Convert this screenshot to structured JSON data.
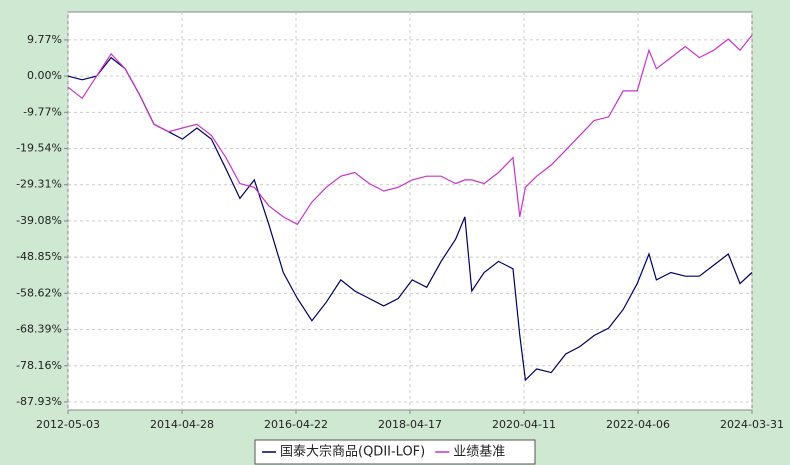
{
  "chart_data": {
    "type": "line",
    "x": [
      "2012-05-03",
      "2012-08-01",
      "2012-11-01",
      "2013-02-01",
      "2013-05-01",
      "2013-08-01",
      "2013-11-01",
      "2014-02-01",
      "2014-05-01",
      "2014-08-01",
      "2014-11-01",
      "2015-02-01",
      "2015-05-01",
      "2015-08-01",
      "2015-11-01",
      "2016-02-01",
      "2016-05-01",
      "2016-08-01",
      "2016-11-01",
      "2017-02-01",
      "2017-05-01",
      "2017-08-01",
      "2017-11-01",
      "2018-02-01",
      "2018-05-01",
      "2018-08-01",
      "2018-11-01",
      "2019-02-01",
      "2019-04-01",
      "2019-05-15",
      "2019-08-01",
      "2019-11-01",
      "2020-02-01",
      "2020-03-15",
      "2020-04-20",
      "2020-07-01",
      "2020-10-01",
      "2021-01-01",
      "2021-04-01",
      "2021-07-01",
      "2021-10-01",
      "2022-01-01",
      "2022-04-01",
      "2022-06-15",
      "2022-08-01",
      "2022-11-01",
      "2023-02-01",
      "2023-05-01",
      "2023-08-01",
      "2023-11-01",
      "2024-01-15",
      "2024-03-31"
    ],
    "series": [
      {
        "name": "国泰大宗商品(QDII-LOF)",
        "color": "#000066",
        "values": [
          0,
          -1,
          0,
          5,
          2,
          -5,
          -13,
          -15,
          -17,
          -14,
          -17,
          -25,
          -33,
          -28,
          -40,
          -53,
          -60,
          -66,
          -61,
          -55,
          -58,
          -60,
          -62,
          -60,
          -55,
          -57,
          -50,
          -44,
          -38,
          -58,
          -53,
          -50,
          -52,
          -70,
          -82,
          -79,
          -80,
          -75,
          -73,
          -70,
          -68,
          -63,
          -56,
          -48,
          -55,
          -53,
          -54,
          -54,
          -51,
          -48,
          -56,
          -53
        ]
      },
      {
        "name": "业绩基准",
        "color": "#cc33cc",
        "values": [
          -3,
          -6,
          0,
          6,
          2,
          -5,
          -13,
          -15,
          -14,
          -13,
          -16,
          -22,
          -29,
          -30,
          -35,
          -38,
          -40,
          -34,
          -30,
          -27,
          -26,
          -29,
          -31,
          -30,
          -28,
          -27,
          -27,
          -29,
          -28,
          -28,
          -29,
          -26,
          -22,
          -38,
          -30,
          -27,
          -24,
          -20,
          -16,
          -12,
          -11,
          -4,
          -4,
          7,
          2,
          5,
          8,
          5,
          7,
          10,
          7,
          11
        ]
      }
    ],
    "xlim": [
      "2012-05-03",
      "2024-03-31"
    ],
    "xticks": [
      "2012-05-03",
      "2014-04-28",
      "2016-04-22",
      "2018-04-17",
      "2020-04-11",
      "2022-04-06",
      "2024-03-31"
    ],
    "ylim": [
      -90.1,
      17.3
    ],
    "yticks": [
      {
        "value": 9.77,
        "label": "9.77%"
      },
      {
        "value": 0,
        "label": "0.00%"
      },
      {
        "value": -9.77,
        "label": "-9.77%"
      },
      {
        "value": -19.54,
        "label": "-19.54%"
      },
      {
        "value": -29.31,
        "label": "-29.31%"
      },
      {
        "value": -39.08,
        "label": "-39.08%"
      },
      {
        "value": -48.85,
        "label": "-48.85%"
      },
      {
        "value": -58.62,
        "label": "-58.62%"
      },
      {
        "value": -68.39,
        "label": "-68.39%"
      },
      {
        "value": -78.16,
        "label": "-78.16%"
      },
      {
        "value": -87.93,
        "label": "-87.93%"
      }
    ],
    "grid": true
  }
}
